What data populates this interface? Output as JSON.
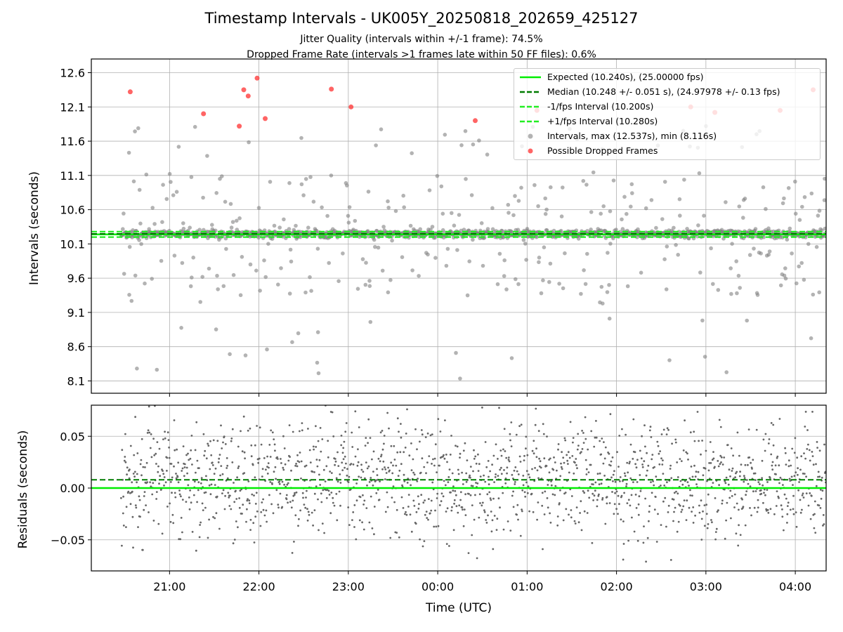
{
  "chart_data": [
    {
      "type": "scatter",
      "title": "Timestamp Intervals - UK005Y_20250818_202659_425127",
      "subtitle_lines": [
        "Jitter Quality (intervals within +/-1 frame): 74.5%",
        "Dropped Frame Rate (intervals >1 frames late within 50 FF files): 0.6%"
      ],
      "ylabel": "Intervals (seconds)",
      "ylim": [
        7.92,
        12.8
      ],
      "yticks": [
        "8.1",
        "8.6",
        "9.1",
        "9.6",
        "10.1",
        "10.6",
        "11.1",
        "11.6",
        "12.1",
        "12.6"
      ],
      "xlim_hours": [
        20.125,
        28.345
      ],
      "xticks": [
        "21:00",
        "22:00",
        "23:00",
        "00:00",
        "01:00",
        "02:00",
        "03:00",
        "04:00"
      ],
      "grid": true,
      "legend_position": "top-right",
      "expected": 10.24,
      "median": 10.248,
      "lower_interval": 10.2,
      "upper_interval": 10.28,
      "legend": [
        "Expected (10.240s), (25.00000 fps)",
        "Median (10.248 +/- 0.051 s), (24.97978 +/- 0.13 fps)",
        "-1/fps Interval (10.200s)",
        "+1/fps Interval (10.280s)",
        "Intervals, max (12.537s), min (8.116s)",
        "Possible Dropped Frames"
      ],
      "series": [
        {
          "name": "Possible Dropped Frames",
          "x_hours": [
            20.56,
            21.38,
            21.78,
            21.83,
            21.88,
            21.98,
            22.07,
            22.81,
            23.03,
            24.42,
            25.11,
            26.83,
            27.1,
            27.83,
            28.2
          ],
          "y": [
            12.32,
            12.0,
            11.82,
            12.35,
            12.26,
            12.52,
            11.93,
            12.36,
            12.1,
            11.9,
            12.05,
            12.1,
            12.02,
            12.05,
            12.35
          ]
        }
      ],
      "series_colors": {
        "expected": "#00ee00",
        "median": "#007a00",
        "interval": "#22ee22",
        "intervals_points": "#808080",
        "dropped": "#ff3030"
      },
      "intervals_range": [
        8.116,
        12.537
      ]
    },
    {
      "type": "scatter",
      "ylabel": "Residuals (seconds)",
      "xlabel": "Time (UTC)",
      "ylim": [
        -0.08,
        0.08
      ],
      "yticks": [
        "0.05",
        "0.00",
        "−0.05"
      ],
      "expected_residual": 0.0,
      "median_residual": 0.008,
      "point_color": "#666666"
    }
  ]
}
